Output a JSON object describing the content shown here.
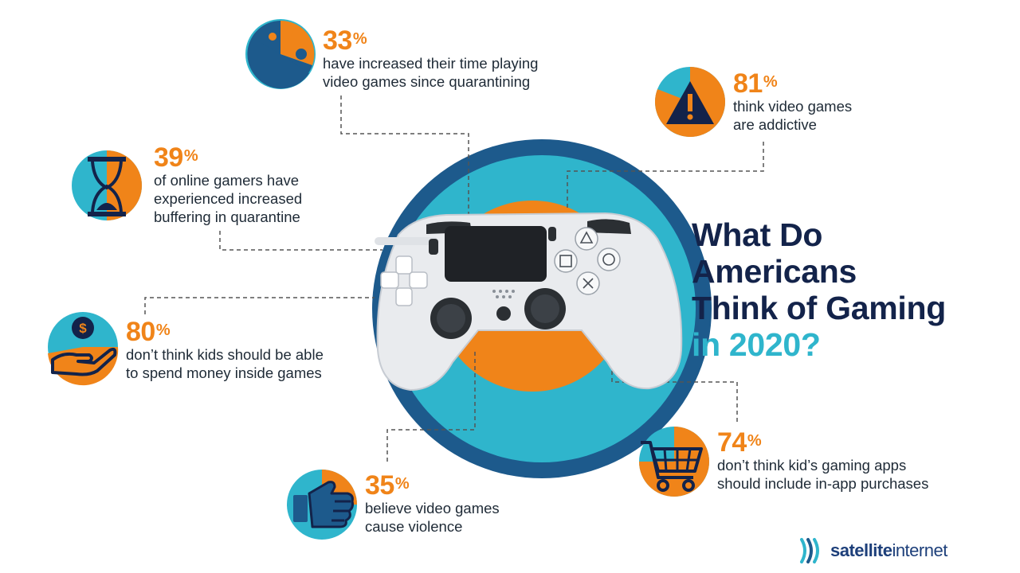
{
  "title": {
    "line1": "What Do",
    "line2": "Americans",
    "line3": "Think of Gaming",
    "line4": "in 2020?"
  },
  "stats": [
    {
      "value": "33",
      "symbol": "%",
      "line1": "have increased their time playing",
      "line2": "video games since quarantining",
      "icon": "pacman-icon"
    },
    {
      "value": "81",
      "symbol": "%",
      "line1": "think video games",
      "line2": "are addictive",
      "icon": "warning-icon"
    },
    {
      "value": "39",
      "symbol": "%",
      "line1": "of online gamers have",
      "line2": "experienced increased",
      "line3": "buffering in quarantine",
      "icon": "hourglass-icon"
    },
    {
      "value": "80",
      "symbol": "%",
      "line1": "don’t think kids should be able",
      "line2": "to spend money inside games",
      "icon": "money-hand-icon"
    },
    {
      "value": "35",
      "symbol": "%",
      "line1": "believe video games",
      "line2": "cause violence",
      "icon": "fist-icon"
    },
    {
      "value": "74",
      "symbol": "%",
      "line1": "don’t think kid’s gaming apps",
      "line2": "should include in-app purchases",
      "icon": "shopping-cart-icon"
    }
  ],
  "logo": {
    "part1": "satellite",
    "part2": "internet",
    "icon": "satellite-waves-icon"
  },
  "colors": {
    "orange": "#f08419",
    "teal": "#2fb5cc",
    "navy": "#13234a",
    "blue": "#1d5a8c"
  }
}
